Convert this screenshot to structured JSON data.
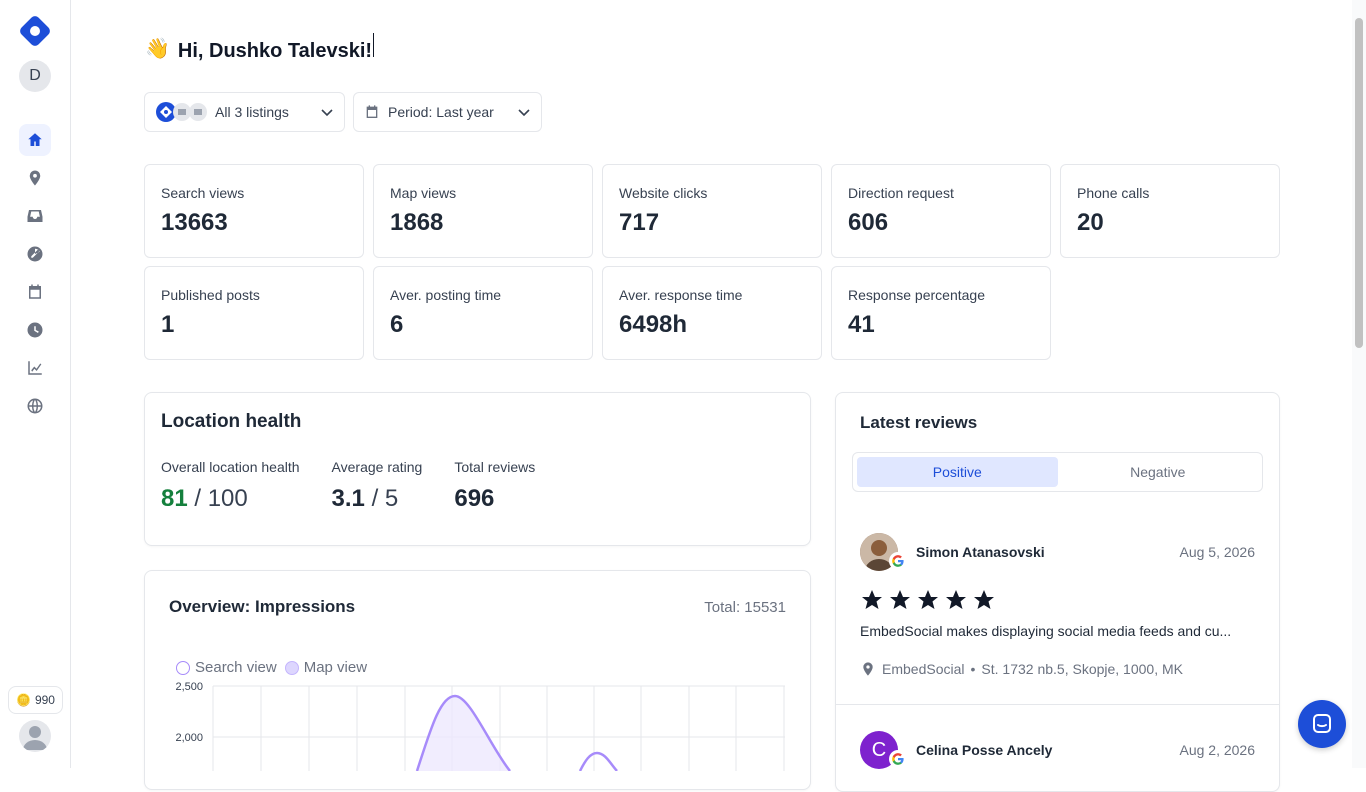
{
  "sidebar": {
    "avatar_initial": "D",
    "credits": "990",
    "nav": [
      "home",
      "location",
      "inbox",
      "posts",
      "calendar",
      "history",
      "analytics",
      "web"
    ]
  },
  "greeting": {
    "emoji": "👋",
    "text": "Hi, Dushko Talevski!"
  },
  "filters": {
    "listings_label": "All 3 listings",
    "period_label": "Period: Last year"
  },
  "stats": [
    {
      "label": "Search views",
      "value": "13663"
    },
    {
      "label": "Map views",
      "value": "1868"
    },
    {
      "label": "Website clicks",
      "value": "717"
    },
    {
      "label": "Direction request",
      "value": "606"
    },
    {
      "label": "Phone calls",
      "value": "20"
    },
    {
      "label": "Published posts",
      "value": "1"
    },
    {
      "label": "Aver. posting time",
      "value": "6"
    },
    {
      "label": "Aver. response time",
      "value": "6498h"
    },
    {
      "label": "Response percentage",
      "value": "41"
    }
  ],
  "location_health": {
    "title": "Location health",
    "overall_label": "Overall location health",
    "overall_value": "81",
    "overall_max": "/ 100",
    "rating_label": "Average rating",
    "rating_value": "3.1",
    "rating_max": "/ 5",
    "reviews_label": "Total reviews",
    "reviews_value": "696"
  },
  "overview": {
    "title": "Overview: Impressions",
    "total": "Total: 15531",
    "legend_search": "Search view",
    "legend_map": "Map view",
    "y_ticks": [
      "2,500",
      "2,000"
    ],
    "colors": {
      "line": "#a78bfa",
      "fill": "#ede9fe"
    }
  },
  "reviews": {
    "title": "Latest reviews",
    "tab_positive": "Positive",
    "tab_negative": "Negative",
    "items": [
      {
        "name": "Simon Atanasovski",
        "date": "Aug 5, 2026",
        "stars": 5,
        "text": "EmbedSocial makes displaying social media feeds and cu...",
        "location_name": "EmbedSocial",
        "address": "St. 1732 nb.5, Skopje, 1000, MK"
      },
      {
        "name": "Celina Posse Ancely",
        "date": "Aug 2, 2026",
        "initial": "C"
      }
    ]
  }
}
